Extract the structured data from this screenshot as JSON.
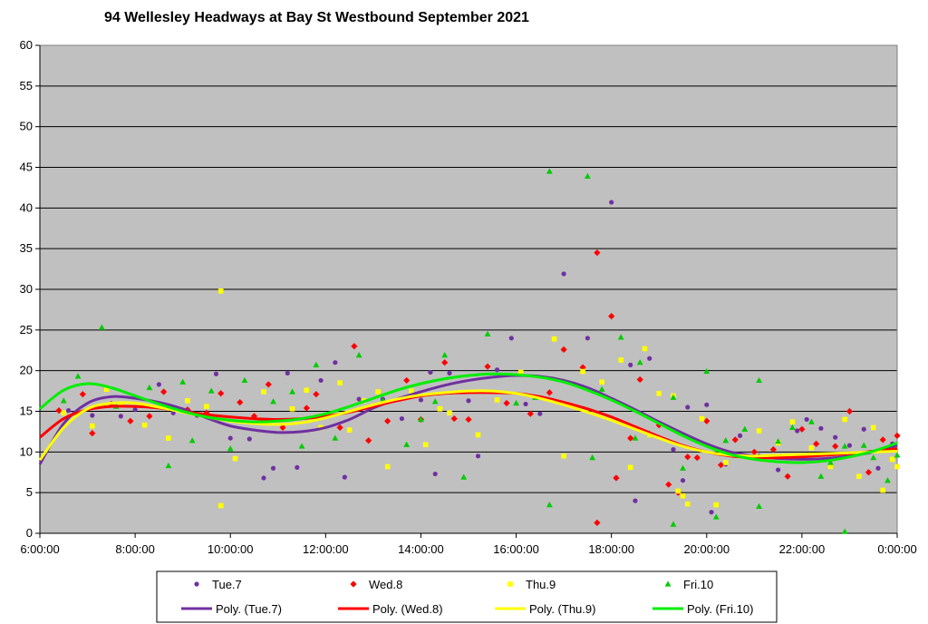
{
  "chart_data": {
    "type": "scatter",
    "title": "94 Wellesley Headways at Bay St Westbound September 2021",
    "xlabel": "",
    "ylabel": "",
    "x_unit": "hours since 6:00",
    "xlim": [
      0,
      18
    ],
    "ylim": [
      0,
      60
    ],
    "grid": true,
    "legend_position": "bottom",
    "x_ticks": [
      {
        "x": 0,
        "label": "6:00:00"
      },
      {
        "x": 2,
        "label": "8:00:00"
      },
      {
        "x": 4,
        "label": "10:00:00"
      },
      {
        "x": 6,
        "label": "12:00:00"
      },
      {
        "x": 8,
        "label": "14:00:00"
      },
      {
        "x": 10,
        "label": "16:00:00"
      },
      {
        "x": 12,
        "label": "18:00:00"
      },
      {
        "x": 14,
        "label": "20:00:00"
      },
      {
        "x": 16,
        "label": "22:00:00"
      },
      {
        "x": 18,
        "label": "0:00:00"
      }
    ],
    "y_ticks": [
      0,
      5,
      10,
      15,
      20,
      25,
      30,
      35,
      40,
      45,
      50,
      55,
      60
    ],
    "series": [
      {
        "name": "Tue.7",
        "marker": "circle",
        "color": "#7030a0",
        "points": [
          [
            0.6,
            15.1
          ],
          [
            1.1,
            14.5
          ],
          [
            1.7,
            14.4
          ],
          [
            2.0,
            15.2
          ],
          [
            2.5,
            18.3
          ],
          [
            2.8,
            14.8
          ],
          [
            3.3,
            14.5
          ],
          [
            3.7,
            19.6
          ],
          [
            4.0,
            11.7
          ],
          [
            4.4,
            11.6
          ],
          [
            4.7,
            6.8
          ],
          [
            4.9,
            8.0
          ],
          [
            5.2,
            19.7
          ],
          [
            5.4,
            8.1
          ],
          [
            5.9,
            18.8
          ],
          [
            6.2,
            21.0
          ],
          [
            6.4,
            6.9
          ],
          [
            6.7,
            16.5
          ],
          [
            7.2,
            16.5
          ],
          [
            7.6,
            14.1
          ],
          [
            8.0,
            16.4
          ],
          [
            8.2,
            19.8
          ],
          [
            8.3,
            7.3
          ],
          [
            8.6,
            19.7
          ],
          [
            9.0,
            16.3
          ],
          [
            9.2,
            9.5
          ],
          [
            9.6,
            20.1
          ],
          [
            9.9,
            24.0
          ],
          [
            10.2,
            15.9
          ],
          [
            10.5,
            14.7
          ],
          [
            11.0,
            31.9
          ],
          [
            11.5,
            24.0
          ],
          [
            12.0,
            40.7
          ],
          [
            12.4,
            20.7
          ],
          [
            12.5,
            4.0
          ],
          [
            12.8,
            21.5
          ],
          [
            13.3,
            10.3
          ],
          [
            13.5,
            6.5
          ],
          [
            13.6,
            15.5
          ],
          [
            14.0,
            15.8
          ],
          [
            14.1,
            2.6
          ],
          [
            14.4,
            8.5
          ],
          [
            14.7,
            12.0
          ],
          [
            15.1,
            9.5
          ],
          [
            15.5,
            7.8
          ],
          [
            15.9,
            12.6
          ],
          [
            16.1,
            14.0
          ],
          [
            16.4,
            12.9
          ],
          [
            16.7,
            11.8
          ],
          [
            17.0,
            10.8
          ],
          [
            17.3,
            12.8
          ],
          [
            17.6,
            8.0
          ],
          [
            17.9,
            11.0
          ]
        ]
      },
      {
        "name": "Wed.8",
        "marker": "diamond",
        "color": "#ff0000",
        "points": [
          [
            0.4,
            15.1
          ],
          [
            0.9,
            17.1
          ],
          [
            1.1,
            12.3
          ],
          [
            1.5,
            15.9
          ],
          [
            1.9,
            13.8
          ],
          [
            2.3,
            14.4
          ],
          [
            2.6,
            17.4
          ],
          [
            3.1,
            15.2
          ],
          [
            3.5,
            14.8
          ],
          [
            3.8,
            17.2
          ],
          [
            4.2,
            16.1
          ],
          [
            4.5,
            14.4
          ],
          [
            4.8,
            18.3
          ],
          [
            5.1,
            13.0
          ],
          [
            5.6,
            15.4
          ],
          [
            5.8,
            17.1
          ],
          [
            6.3,
            13.0
          ],
          [
            6.6,
            23.0
          ],
          [
            6.9,
            11.4
          ],
          [
            7.3,
            13.8
          ],
          [
            7.7,
            18.8
          ],
          [
            8.0,
            14.0
          ],
          [
            8.5,
            21.0
          ],
          [
            8.7,
            14.1
          ],
          [
            9.0,
            14.0
          ],
          [
            9.4,
            20.5
          ],
          [
            9.8,
            16.0
          ],
          [
            10.3,
            14.7
          ],
          [
            10.7,
            17.3
          ],
          [
            11.0,
            22.6
          ],
          [
            11.4,
            20.4
          ],
          [
            11.7,
            1.3
          ],
          [
            11.7,
            34.5
          ],
          [
            12.0,
            26.7
          ],
          [
            12.1,
            6.8
          ],
          [
            12.4,
            11.7
          ],
          [
            12.6,
            18.9
          ],
          [
            13.0,
            13.3
          ],
          [
            13.2,
            6.0
          ],
          [
            13.4,
            5.0
          ],
          [
            13.6,
            9.4
          ],
          [
            13.8,
            9.3
          ],
          [
            14.0,
            13.8
          ],
          [
            14.3,
            8.4
          ],
          [
            14.6,
            11.5
          ],
          [
            15.0,
            10.0
          ],
          [
            15.4,
            10.3
          ],
          [
            15.7,
            7.0
          ],
          [
            16.0,
            12.8
          ],
          [
            16.3,
            11.0
          ],
          [
            16.7,
            10.7
          ],
          [
            17.0,
            15.0
          ],
          [
            17.4,
            7.5
          ],
          [
            17.7,
            11.5
          ],
          [
            18.0,
            12.0
          ]
        ]
      },
      {
        "name": "Thu.9",
        "marker": "square",
        "color": "#ffff00",
        "points": [
          [
            0.5,
            14.8
          ],
          [
            1.1,
            13.2
          ],
          [
            1.4,
            17.7
          ],
          [
            1.7,
            15.8
          ],
          [
            2.2,
            13.3
          ],
          [
            2.7,
            11.7
          ],
          [
            3.1,
            16.3
          ],
          [
            3.5,
            15.6
          ],
          [
            3.8,
            29.8
          ],
          [
            3.8,
            3.4
          ],
          [
            4.1,
            9.2
          ],
          [
            4.7,
            17.4
          ],
          [
            5.3,
            15.3
          ],
          [
            5.6,
            17.6
          ],
          [
            5.9,
            13.0
          ],
          [
            6.3,
            18.5
          ],
          [
            6.5,
            12.7
          ],
          [
            6.8,
            16.3
          ],
          [
            7.1,
            17.4
          ],
          [
            7.3,
            8.2
          ],
          [
            7.8,
            17.5
          ],
          [
            8.1,
            10.9
          ],
          [
            8.4,
            15.3
          ],
          [
            8.6,
            14.8
          ],
          [
            9.2,
            12.1
          ],
          [
            9.6,
            16.4
          ],
          [
            10.1,
            19.8
          ],
          [
            10.8,
            23.9
          ],
          [
            11.0,
            9.5
          ],
          [
            11.4,
            19.9
          ],
          [
            11.8,
            18.6
          ],
          [
            12.2,
            21.3
          ],
          [
            12.4,
            8.1
          ],
          [
            12.7,
            22.7
          ],
          [
            12.8,
            12.1
          ],
          [
            13.0,
            17.2
          ],
          [
            13.3,
            16.9
          ],
          [
            13.4,
            5.2
          ],
          [
            13.5,
            4.6
          ],
          [
            13.6,
            3.6
          ],
          [
            13.9,
            14.1
          ],
          [
            14.2,
            3.5
          ],
          [
            14.4,
            8.7
          ],
          [
            14.7,
            9.5
          ],
          [
            15.1,
            12.6
          ],
          [
            15.5,
            11.1
          ],
          [
            15.8,
            13.7
          ],
          [
            16.2,
            10.5
          ],
          [
            16.6,
            8.2
          ],
          [
            16.9,
            14.0
          ],
          [
            17.2,
            7.0
          ],
          [
            17.5,
            13.0
          ],
          [
            17.7,
            5.3
          ],
          [
            17.9,
            9.1
          ],
          [
            18.0,
            8.2
          ]
        ]
      },
      {
        "name": "Fri.10",
        "marker": "triangle",
        "color": "#00cc00",
        "points": [
          [
            0.5,
            16.3
          ],
          [
            0.8,
            19.3
          ],
          [
            1.3,
            25.3
          ],
          [
            1.6,
            15.6
          ],
          [
            2.3,
            17.9
          ],
          [
            2.7,
            8.3
          ],
          [
            3.0,
            18.6
          ],
          [
            3.2,
            11.4
          ],
          [
            3.6,
            17.5
          ],
          [
            4.0,
            10.4
          ],
          [
            4.3,
            18.8
          ],
          [
            4.9,
            16.2
          ],
          [
            5.3,
            17.4
          ],
          [
            5.5,
            10.7
          ],
          [
            5.8,
            20.7
          ],
          [
            6.2,
            11.7
          ],
          [
            6.7,
            21.9
          ],
          [
            7.2,
            16.3
          ],
          [
            7.7,
            10.9
          ],
          [
            8.0,
            14.0
          ],
          [
            8.3,
            16.2
          ],
          [
            8.5,
            21.9
          ],
          [
            8.9,
            6.9
          ],
          [
            9.4,
            24.5
          ],
          [
            10.0,
            16.0
          ],
          [
            10.4,
            16.7
          ],
          [
            10.7,
            44.5
          ],
          [
            10.7,
            3.5
          ],
          [
            11.5,
            43.9
          ],
          [
            11.6,
            9.3
          ],
          [
            11.8,
            17.7
          ],
          [
            12.2,
            24.1
          ],
          [
            12.5,
            11.7
          ],
          [
            12.6,
            21.0
          ],
          [
            12.8,
            12.3
          ],
          [
            13.3,
            16.7
          ],
          [
            13.3,
            1.1
          ],
          [
            13.5,
            8.0
          ],
          [
            14.0,
            19.9
          ],
          [
            14.2,
            2.0
          ],
          [
            14.4,
            11.4
          ],
          [
            14.8,
            12.8
          ],
          [
            15.1,
            18.8
          ],
          [
            15.1,
            3.3
          ],
          [
            15.5,
            11.3
          ],
          [
            15.8,
            13.0
          ],
          [
            16.2,
            13.7
          ],
          [
            16.4,
            7.0
          ],
          [
            16.6,
            8.7
          ],
          [
            16.9,
            10.7
          ],
          [
            16.9,
            0.2
          ],
          [
            17.3,
            10.8
          ],
          [
            17.5,
            9.3
          ],
          [
            17.8,
            6.5
          ],
          [
            18.0,
            9.6
          ]
        ]
      }
    ],
    "trendlines": [
      {
        "name": "Poly. (Tue.7)",
        "color": "#7030a0",
        "x": [
          0,
          0.5,
          1,
          1.5,
          2,
          2.5,
          3,
          3.5,
          4,
          4.5,
          5,
          5.5,
          6,
          6.5,
          7,
          7.5,
          8,
          8.5,
          9,
          9.5,
          10,
          10.5,
          11,
          11.5,
          12,
          12.5,
          13,
          13.5,
          14,
          14.5,
          15,
          15.5,
          16,
          16.5,
          17,
          17.5,
          18
        ],
        "y": [
          8.5,
          13.5,
          16.0,
          16.8,
          16.6,
          16.1,
          15.3,
          14.2,
          13.2,
          12.7,
          12.4,
          12.5,
          13.0,
          14.0,
          15.4,
          16.5,
          17.4,
          18.2,
          18.8,
          19.2,
          19.4,
          19.3,
          18.8,
          17.9,
          16.6,
          15.2,
          13.7,
          12.3,
          11.0,
          10.0,
          9.5,
          9.2,
          9.1,
          9.2,
          9.5,
          10.0,
          10.8
        ]
      },
      {
        "name": "Poly. (Wed.8)",
        "color": "#ff0000",
        "x": [
          0,
          0.5,
          1,
          1.5,
          2,
          2.5,
          3,
          3.5,
          4,
          4.5,
          5,
          5.5,
          6,
          6.5,
          7,
          7.5,
          8,
          8.5,
          9,
          9.5,
          10,
          10.5,
          11,
          11.5,
          12,
          12.5,
          13,
          13.5,
          14,
          14.5,
          15,
          15.5,
          16,
          16.5,
          17,
          17.5,
          18
        ],
        "y": [
          11.8,
          14.1,
          15.2,
          15.6,
          15.6,
          15.4,
          15.0,
          14.6,
          14.3,
          14.1,
          14.0,
          14.1,
          14.4,
          14.9,
          15.6,
          16.3,
          16.9,
          17.2,
          17.3,
          17.3,
          17.2,
          16.8,
          16.1,
          15.3,
          14.3,
          13.1,
          11.9,
          10.8,
          10.0,
          9.5,
          9.3,
          9.3,
          9.4,
          9.6,
          9.8,
          10.1,
          10.4
        ]
      },
      {
        "name": "Poly. (Thu.9)",
        "color": "#ffff00",
        "x": [
          0,
          0.5,
          1,
          1.5,
          2,
          2.5,
          3,
          3.5,
          4,
          4.5,
          5,
          5.5,
          6,
          6.5,
          7,
          7.5,
          8,
          8.5,
          9,
          9.5,
          10,
          10.5,
          11,
          11.5,
          12,
          12.5,
          13,
          13.5,
          14,
          14.5,
          15,
          15.5,
          16,
          16.5,
          17,
          17.5,
          18
        ],
        "y": [
          9.0,
          13.0,
          15.3,
          16.0,
          16.0,
          15.5,
          14.9,
          14.3,
          13.8,
          13.5,
          13.4,
          13.6,
          14.2,
          15.0,
          15.8,
          16.5,
          17.0,
          17.3,
          17.5,
          17.5,
          17.2,
          16.6,
          15.8,
          14.9,
          13.9,
          12.8,
          11.7,
          10.7,
          10.0,
          9.6,
          9.5,
          9.6,
          9.7,
          9.8,
          9.9,
          10.0,
          10.1
        ]
      },
      {
        "name": "Poly. (Fri.10)",
        "color": "#00ee00",
        "x": [
          0,
          0.5,
          1,
          1.5,
          2,
          2.5,
          3,
          3.5,
          4,
          4.5,
          5,
          5.5,
          6,
          6.5,
          7,
          7.5,
          8,
          8.5,
          9,
          9.5,
          10,
          10.5,
          11,
          11.5,
          12,
          12.5,
          13,
          13.5,
          14,
          14.5,
          15,
          15.5,
          16,
          16.5,
          17,
          17.5,
          18
        ],
        "y": [
          15.3,
          17.6,
          18.4,
          17.9,
          16.9,
          15.9,
          15.0,
          14.3,
          13.9,
          13.7,
          13.8,
          14.1,
          14.7,
          15.6,
          16.6,
          17.6,
          18.4,
          19.0,
          19.4,
          19.6,
          19.5,
          19.2,
          18.6,
          17.6,
          16.4,
          15.0,
          13.5,
          12.0,
          10.7,
          9.7,
          9.1,
          8.8,
          8.7,
          8.9,
          9.4,
          10.1,
          11.1
        ]
      }
    ]
  }
}
